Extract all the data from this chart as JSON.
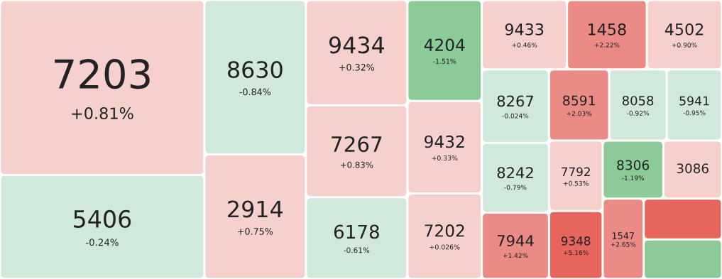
{
  "chart_data": {
    "type": "other",
    "categories": [
      "7203",
      "5406",
      "8630",
      "2914",
      "9434",
      "7267",
      "6178",
      "4204",
      "9432",
      "7202",
      "9433",
      "1458",
      "4502",
      "8267",
      "8242",
      "7944",
      "8591",
      "8058",
      "5941",
      "7792",
      "9348",
      "8306",
      "3086",
      "1547",
      null,
      null
    ],
    "values": [
      0.81,
      -0.24,
      -0.84,
      0.75,
      0.32,
      0.83,
      -0.61,
      -1.51,
      0.33,
      0.026,
      0.46,
      2.22,
      0.9,
      -0.024,
      -0.79,
      1.42,
      2.03,
      -0.92,
      -0.95,
      0.53,
      5.16,
      -1.19,
      null,
      2.65,
      null,
      null
    ],
    "value_labels": [
      "+0.81%",
      "-0.24%",
      "-0.84%",
      "+0.75%",
      "+0.32%",
      "+0.83%",
      "-0.61%",
      "-1.51%",
      "+0.33%",
      "+0.026%",
      "+0.46%",
      "+2.22%",
      "+0.90%",
      "-0.024%",
      "-0.79%",
      "+1.42%",
      "+2.03%",
      "-0.92%",
      "-0.95%",
      "+0.53%",
      "+5.16%",
      "-1.19%",
      null,
      "+2.65%",
      null,
      null
    ],
    "colors": [
      null,
      null,
      null,
      null,
      null,
      null,
      null,
      null,
      null,
      null,
      null,
      null,
      null,
      null,
      null,
      null,
      null,
      null,
      null,
      null,
      null,
      null,
      "#f5d0cd",
      null,
      "#e6665d",
      "#8cca98"
    ]
  }
}
